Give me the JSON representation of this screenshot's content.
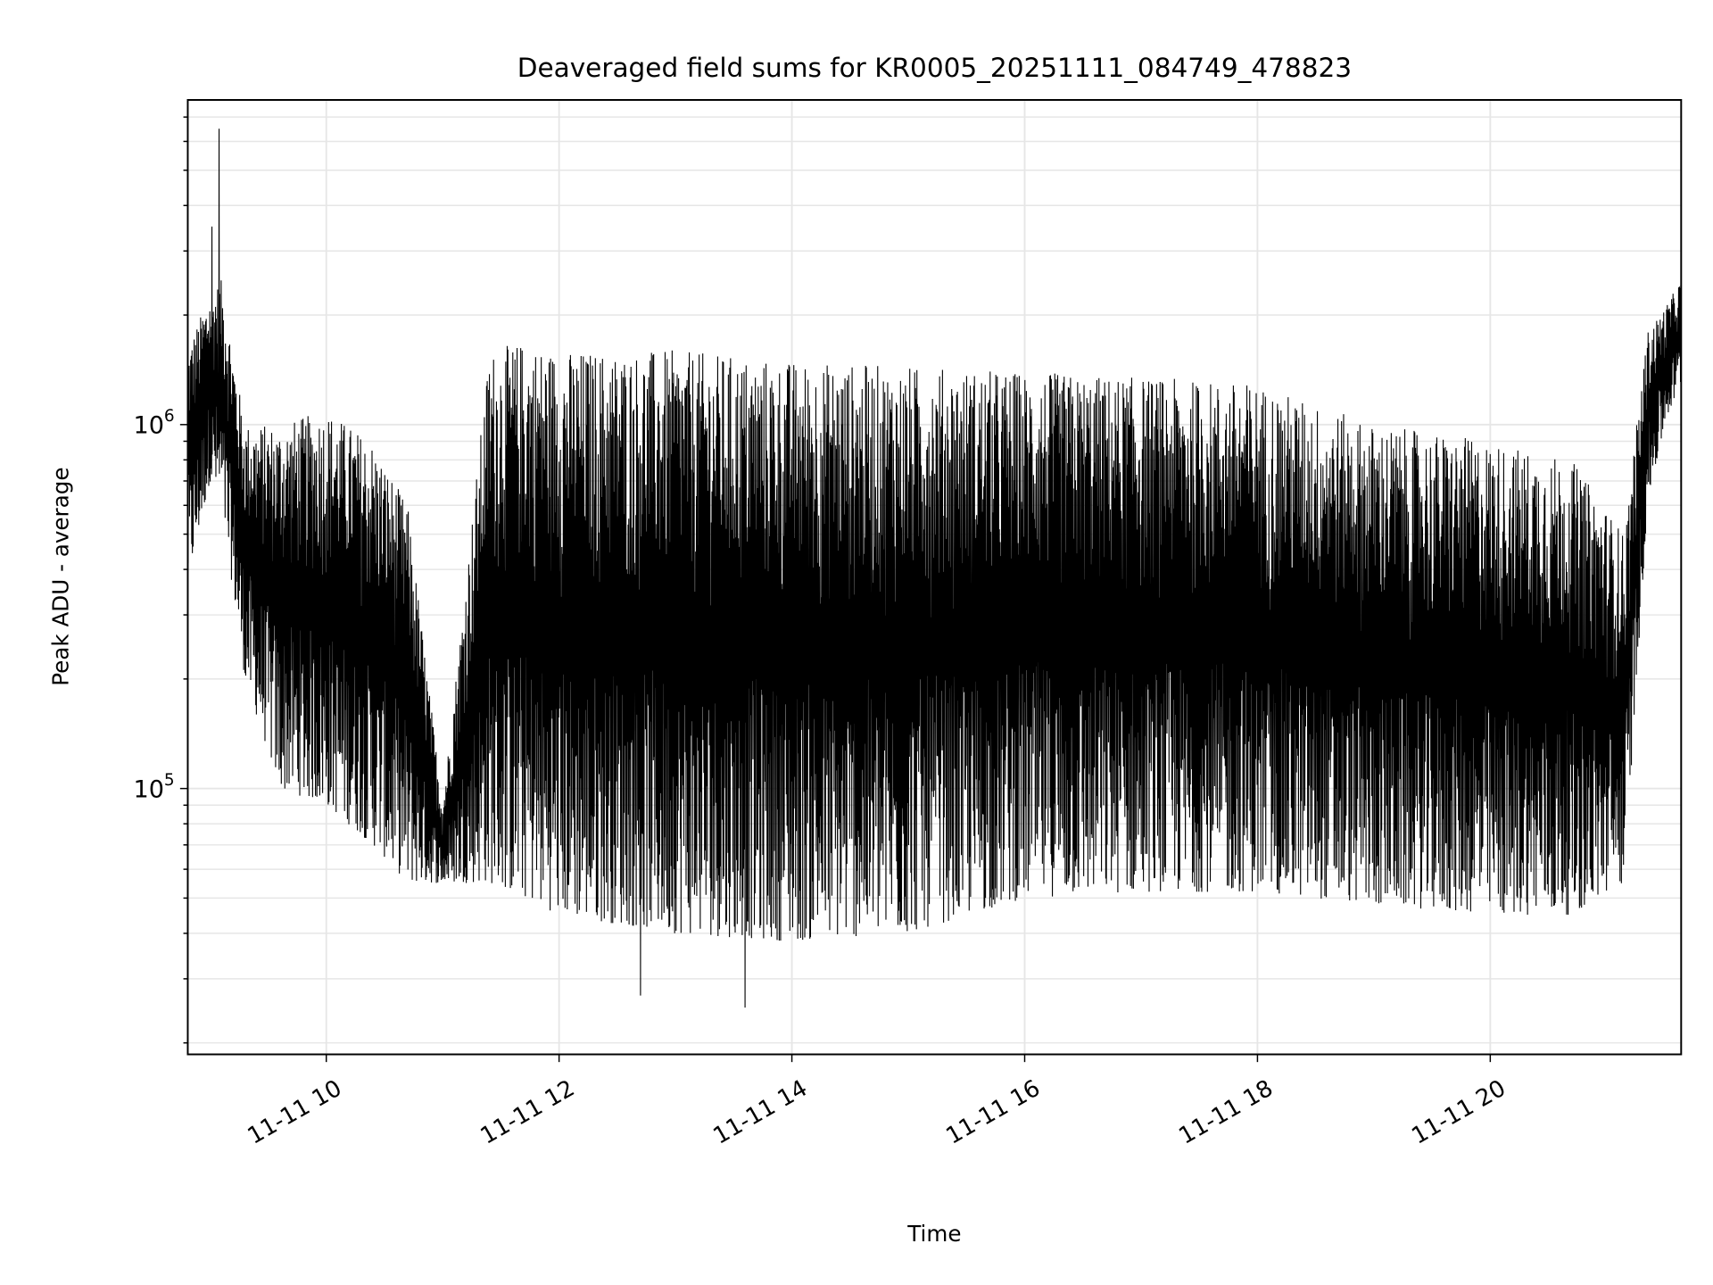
{
  "chart_data": {
    "type": "line",
    "title": "Deaveraged field sums for KR0005_20251111_084749_478823",
    "xlabel": "Time",
    "ylabel": "Peak ADU - average",
    "yscale": "log",
    "xlim_hours": [
      8.81,
      21.64
    ],
    "ylim": [
      18600,
      7800000
    ],
    "grid": true,
    "x_ticks": [
      {
        "hour": 10,
        "label": "11-11 10"
      },
      {
        "hour": 12,
        "label": "11-11 12"
      },
      {
        "hour": 14,
        "label": "11-11 14"
      },
      {
        "hour": 16,
        "label": "11-11 16"
      },
      {
        "hour": 18,
        "label": "11-11 18"
      },
      {
        "hour": 20,
        "label": "11-11 20"
      }
    ],
    "y_major_ticks": [
      {
        "value": 100000,
        "base": "10",
        "exp": "5"
      },
      {
        "value": 1000000,
        "base": "10",
        "exp": "6"
      }
    ],
    "line_color": "#000000",
    "grid_color": "#e6e6e6",
    "series_envelope": {
      "note_hours": "hours of 2025-11-11, envelope of the dense noisy trace",
      "hour": [
        8.8,
        9.0,
        9.1,
        9.3,
        9.6,
        10.0,
        10.4,
        10.7,
        11.0,
        11.4,
        11.7,
        12.0,
        13.0,
        14.0,
        15.0,
        16.0,
        17.0,
        18.0,
        19.0,
        20.0,
        20.7,
        21.15,
        21.35,
        21.5,
        21.64
      ],
      "low": [
        350000,
        700000,
        600000,
        200000,
        100000,
        90000,
        70000,
        55000,
        55000,
        55000,
        50000,
        45000,
        40000,
        38000,
        40000,
        50000,
        52000,
        52000,
        48000,
        45000,
        45000,
        55000,
        600000,
        1000000,
        1300000
      ],
      "high": [
        1600000,
        2300000,
        2500000,
        1000000,
        1000000,
        1100000,
        900000,
        600000,
        90000,
        1600000,
        1700000,
        1600000,
        1600000,
        1500000,
        1450000,
        1400000,
        1350000,
        1300000,
        1000000,
        900000,
        800000,
        500000,
        1800000,
        2100000,
        2500000
      ]
    },
    "notable_points": [
      {
        "hour": 9.08,
        "value": 6500000
      },
      {
        "hour": 9.02,
        "value": 3500000
      },
      {
        "hour": 13.6,
        "value": 25000
      },
      {
        "hour": 12.7,
        "value": 27000
      }
    ]
  }
}
